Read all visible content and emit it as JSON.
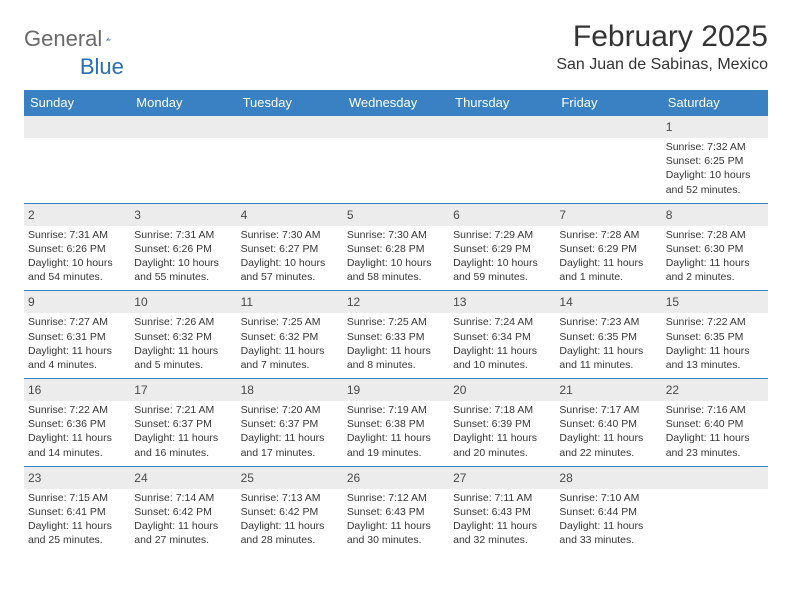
{
  "brand": {
    "general": "General",
    "blue": "Blue"
  },
  "title": "February 2025",
  "location": "San Juan de Sabinas, Mexico",
  "colors": {
    "header_bg": "#3a81c4",
    "header_text": "#ffffff",
    "border": "#3a81c4",
    "daynum_bg": "#ececec",
    "text": "#373737",
    "logo_gray": "#6a6a6a",
    "logo_blue": "#2a6fb5"
  },
  "day_headers": [
    "Sunday",
    "Monday",
    "Tuesday",
    "Wednesday",
    "Thursday",
    "Friday",
    "Saturday"
  ],
  "weeks": [
    [
      null,
      null,
      null,
      null,
      null,
      null,
      {
        "n": "1",
        "sr": "7:32 AM",
        "ss": "6:25 PM",
        "dl": "10 hours and 52 minutes."
      }
    ],
    [
      {
        "n": "2",
        "sr": "7:31 AM",
        "ss": "6:26 PM",
        "dl": "10 hours and 54 minutes."
      },
      {
        "n": "3",
        "sr": "7:31 AM",
        "ss": "6:26 PM",
        "dl": "10 hours and 55 minutes."
      },
      {
        "n": "4",
        "sr": "7:30 AM",
        "ss": "6:27 PM",
        "dl": "10 hours and 57 minutes."
      },
      {
        "n": "5",
        "sr": "7:30 AM",
        "ss": "6:28 PM",
        "dl": "10 hours and 58 minutes."
      },
      {
        "n": "6",
        "sr": "7:29 AM",
        "ss": "6:29 PM",
        "dl": "10 hours and 59 minutes."
      },
      {
        "n": "7",
        "sr": "7:28 AM",
        "ss": "6:29 PM",
        "dl": "11 hours and 1 minute."
      },
      {
        "n": "8",
        "sr": "7:28 AM",
        "ss": "6:30 PM",
        "dl": "11 hours and 2 minutes."
      }
    ],
    [
      {
        "n": "9",
        "sr": "7:27 AM",
        "ss": "6:31 PM",
        "dl": "11 hours and 4 minutes."
      },
      {
        "n": "10",
        "sr": "7:26 AM",
        "ss": "6:32 PM",
        "dl": "11 hours and 5 minutes."
      },
      {
        "n": "11",
        "sr": "7:25 AM",
        "ss": "6:32 PM",
        "dl": "11 hours and 7 minutes."
      },
      {
        "n": "12",
        "sr": "7:25 AM",
        "ss": "6:33 PM",
        "dl": "11 hours and 8 minutes."
      },
      {
        "n": "13",
        "sr": "7:24 AM",
        "ss": "6:34 PM",
        "dl": "11 hours and 10 minutes."
      },
      {
        "n": "14",
        "sr": "7:23 AM",
        "ss": "6:35 PM",
        "dl": "11 hours and 11 minutes."
      },
      {
        "n": "15",
        "sr": "7:22 AM",
        "ss": "6:35 PM",
        "dl": "11 hours and 13 minutes."
      }
    ],
    [
      {
        "n": "16",
        "sr": "7:22 AM",
        "ss": "6:36 PM",
        "dl": "11 hours and 14 minutes."
      },
      {
        "n": "17",
        "sr": "7:21 AM",
        "ss": "6:37 PM",
        "dl": "11 hours and 16 minutes."
      },
      {
        "n": "18",
        "sr": "7:20 AM",
        "ss": "6:37 PM",
        "dl": "11 hours and 17 minutes."
      },
      {
        "n": "19",
        "sr": "7:19 AM",
        "ss": "6:38 PM",
        "dl": "11 hours and 19 minutes."
      },
      {
        "n": "20",
        "sr": "7:18 AM",
        "ss": "6:39 PM",
        "dl": "11 hours and 20 minutes."
      },
      {
        "n": "21",
        "sr": "7:17 AM",
        "ss": "6:40 PM",
        "dl": "11 hours and 22 minutes."
      },
      {
        "n": "22",
        "sr": "7:16 AM",
        "ss": "6:40 PM",
        "dl": "11 hours and 23 minutes."
      }
    ],
    [
      {
        "n": "23",
        "sr": "7:15 AM",
        "ss": "6:41 PM",
        "dl": "11 hours and 25 minutes."
      },
      {
        "n": "24",
        "sr": "7:14 AM",
        "ss": "6:42 PM",
        "dl": "11 hours and 27 minutes."
      },
      {
        "n": "25",
        "sr": "7:13 AM",
        "ss": "6:42 PM",
        "dl": "11 hours and 28 minutes."
      },
      {
        "n": "26",
        "sr": "7:12 AM",
        "ss": "6:43 PM",
        "dl": "11 hours and 30 minutes."
      },
      {
        "n": "27",
        "sr": "7:11 AM",
        "ss": "6:43 PM",
        "dl": "11 hours and 32 minutes."
      },
      {
        "n": "28",
        "sr": "7:10 AM",
        "ss": "6:44 PM",
        "dl": "11 hours and 33 minutes."
      },
      null
    ]
  ],
  "labels": {
    "sunrise": "Sunrise:",
    "sunset": "Sunset:",
    "daylight": "Daylight:"
  }
}
